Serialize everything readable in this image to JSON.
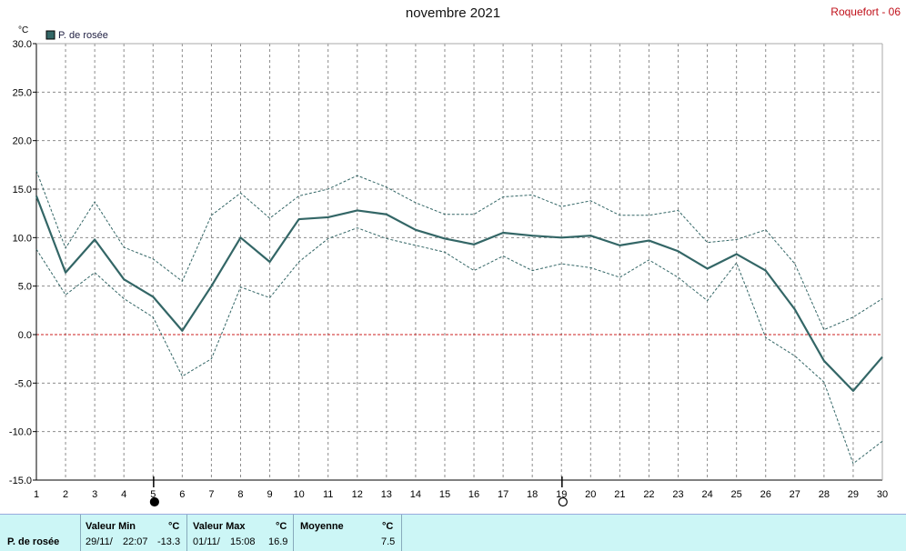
{
  "header": {
    "title": "novembre 2021",
    "station": "Roquefort - 06"
  },
  "chart_data": {
    "type": "line",
    "unit": "°C",
    "legend": "P. de rosée",
    "x": [
      1,
      2,
      3,
      4,
      5,
      6,
      7,
      8,
      9,
      10,
      11,
      12,
      13,
      14,
      15,
      16,
      17,
      18,
      19,
      20,
      21,
      22,
      23,
      24,
      25,
      26,
      27,
      28,
      29,
      30
    ],
    "ylim": [
      -15,
      30
    ],
    "yticks": [
      "30.0",
      "25.0",
      "20.0",
      "15.0",
      "10.0",
      "5.0",
      "0.0",
      "-5.0",
      "-10.0",
      "-15.0"
    ],
    "series": [
      {
        "name": "P. de rosée",
        "role": "mean",
        "values": [
          14.3,
          6.4,
          9.8,
          5.7,
          3.9,
          0.4,
          5.0,
          10.0,
          7.5,
          11.9,
          12.1,
          12.8,
          12.4,
          10.8,
          9.9,
          9.3,
          10.5,
          10.2,
          10.0,
          10.2,
          9.2,
          9.7,
          8.6,
          6.8,
          8.3,
          6.6,
          2.6,
          -2.7,
          -5.8,
          -2.3
        ]
      },
      {
        "role": "max",
        "values": [
          16.9,
          8.9,
          13.7,
          9.0,
          7.8,
          5.5,
          12.3,
          14.6,
          12.0,
          14.3,
          15.0,
          16.4,
          15.2,
          13.6,
          12.4,
          12.4,
          14.2,
          14.4,
          13.2,
          13.8,
          12.3,
          12.3,
          12.8,
          9.5,
          9.8,
          10.8,
          7.3,
          0.5,
          1.8,
          3.7
        ]
      },
      {
        "role": "min",
        "values": [
          8.8,
          4.1,
          6.4,
          3.7,
          1.8,
          -4.3,
          -2.5,
          4.9,
          3.8,
          7.5,
          9.9,
          11.0,
          9.9,
          9.2,
          8.5,
          6.6,
          8.1,
          6.6,
          7.3,
          6.9,
          5.9,
          7.7,
          5.9,
          3.5,
          7.4,
          -0.3,
          -2.2,
          -4.9,
          -13.3,
          -11.0
        ]
      }
    ],
    "colors": {
      "line": "#336666",
      "zero_line": "#cc2222",
      "grid": "#8c8c8c"
    },
    "moon_markers": [
      {
        "day": 5,
        "phase": "new"
      },
      {
        "day": 19,
        "phase": "full"
      }
    ]
  },
  "footer": {
    "series_name": "P. de rosée",
    "min": {
      "label": "Valeur Min",
      "unit": "°C",
      "date": "29/11/",
      "time": "22:07",
      "value": "-13.3"
    },
    "max": {
      "label": "Valeur Max",
      "unit": "°C",
      "date": "01/11/",
      "time": "15:08",
      "value": "16.9"
    },
    "avg": {
      "label": "Moyenne",
      "unit": "°C",
      "value": "7.5"
    }
  }
}
